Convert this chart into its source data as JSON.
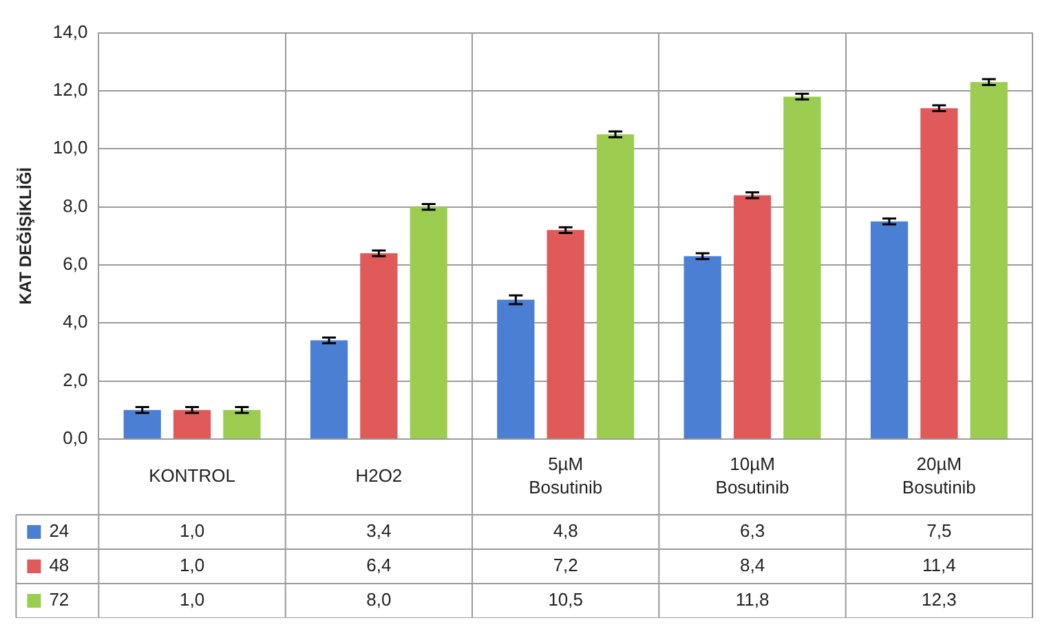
{
  "chart_data": {
    "type": "bar",
    "ylabel": "KAT DEĞİŞİKLİĞİ",
    "categories": [
      "KONTROL",
      "H2O2",
      "5µM Bosutinib",
      "10µM Bosutinib",
      "20µM Bosutinib"
    ],
    "series": [
      {
        "name": "24",
        "color": "#4a7fd4",
        "values": [
          1.0,
          3.4,
          4.8,
          6.3,
          7.5
        ],
        "value_labels": [
          "1,0",
          "3,4",
          "4,8",
          "6,3",
          "7,5"
        ],
        "errors": [
          0.1,
          0.1,
          0.15,
          0.1,
          0.1
        ]
      },
      {
        "name": "48",
        "color": "#e05a5a",
        "values": [
          1.0,
          6.4,
          7.2,
          8.4,
          11.4
        ],
        "value_labels": [
          "1,0",
          "6,4",
          "7,2",
          "8,4",
          "11,4"
        ],
        "errors": [
          0.1,
          0.1,
          0.1,
          0.1,
          0.1
        ]
      },
      {
        "name": "72",
        "color": "#9ccc50",
        "values": [
          1.0,
          8.0,
          10.5,
          11.8,
          12.3
        ],
        "value_labels": [
          "1,0",
          "8,0",
          "10,5",
          "11,8",
          "12,3"
        ],
        "errors": [
          0.1,
          0.1,
          0.1,
          0.1,
          0.1
        ]
      }
    ],
    "ylim": [
      0,
      14
    ],
    "yticks": [
      {
        "value": 0,
        "label": "0,0"
      },
      {
        "value": 2,
        "label": "2,0"
      },
      {
        "value": 4,
        "label": "4,0"
      },
      {
        "value": 6,
        "label": "6,0"
      },
      {
        "value": 8,
        "label": "8,0"
      },
      {
        "value": 10,
        "label": "10,0"
      },
      {
        "value": 12,
        "label": "12,0"
      },
      {
        "value": 14,
        "label": "14,0"
      }
    ],
    "grid": true,
    "legend": "bottom left"
  }
}
